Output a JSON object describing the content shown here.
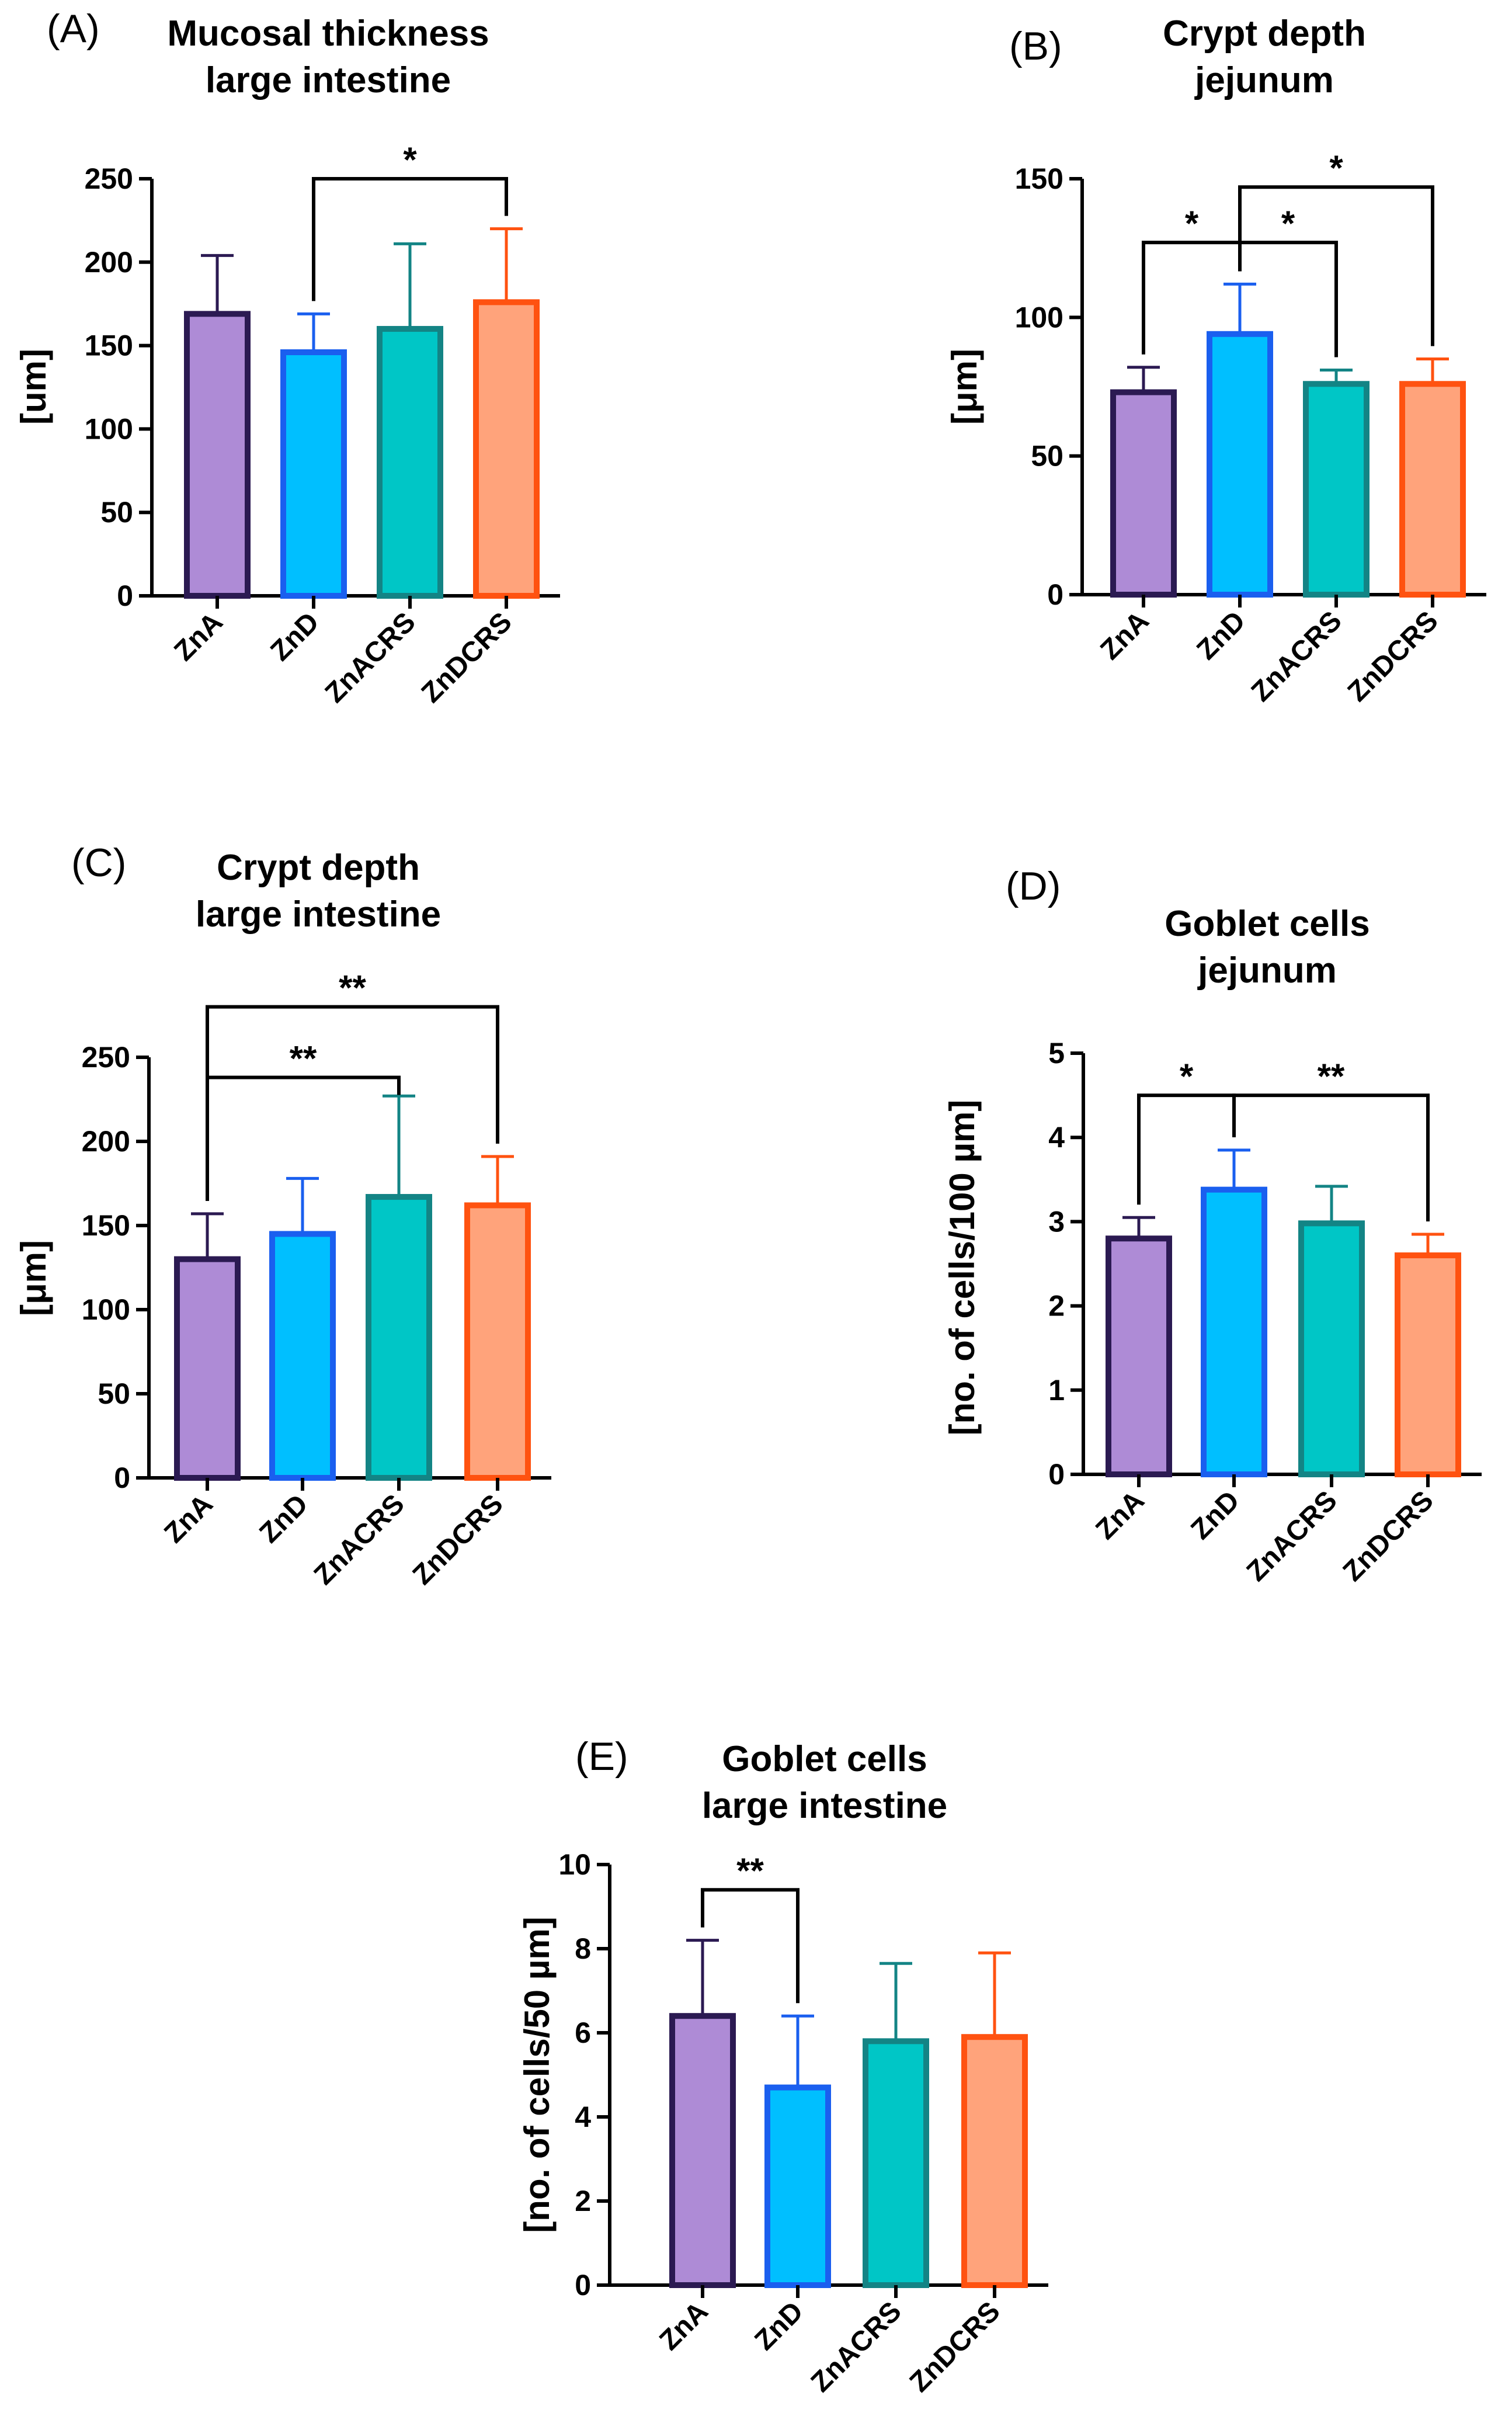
{
  "chart_data": [
    {
      "id": "A",
      "type": "bar",
      "panel_label": "(A)",
      "title": [
        "Mucosal thickness",
        "large intestine"
      ],
      "ylabel": "[um]",
      "categories": [
        "ZnA",
        "ZnD",
        "ZnACRS",
        "ZnDCRS"
      ],
      "values": [
        169,
        146,
        160,
        176
      ],
      "errors": [
        35,
        23,
        51,
        44
      ],
      "ylim": [
        0,
        250
      ],
      "yticks": [
        0,
        50,
        100,
        150,
        200,
        250
      ],
      "ytick_labels": [
        "0",
        "50",
        "100",
        "150",
        "200",
        "250"
      ],
      "significance": [
        {
          "from": 1,
          "to": 3,
          "label": "*",
          "level": 250
        }
      ]
    },
    {
      "id": "B",
      "type": "bar",
      "panel_label": "(B)",
      "title": [
        "Crypt depth",
        "jejunum"
      ],
      "ylabel": "[μm]",
      "categories": [
        "ZnA",
        "ZnD",
        "ZnACRS",
        "ZnDCRS"
      ],
      "values": [
        73,
        94,
        76,
        76
      ],
      "errors": [
        9,
        18,
        5,
        9
      ],
      "ylim": [
        0,
        150
      ],
      "yticks": [
        0,
        50,
        100,
        150
      ],
      "ytick_labels": [
        "0",
        "50",
        "100",
        "150"
      ],
      "significance": [
        {
          "from": 0,
          "to": 1,
          "label": "*",
          "level": 127
        },
        {
          "from": 1,
          "to": 2,
          "label": "*",
          "level": 127
        },
        {
          "from": 1,
          "to": 3,
          "label": "*",
          "level": 147
        }
      ]
    },
    {
      "id": "C",
      "type": "bar",
      "panel_label": "(C)",
      "title": [
        "Crypt depth",
        "large intestine"
      ],
      "ylabel": "[μm]",
      "categories": [
        "ZnA",
        "ZnD",
        "ZnACRS",
        "ZnDCRS"
      ],
      "values": [
        130,
        145,
        167,
        162
      ],
      "errors": [
        27,
        33,
        60,
        29
      ],
      "ylim": [
        0,
        250
      ],
      "yticks": [
        0,
        50,
        100,
        150,
        200,
        250
      ],
      "ytick_labels": [
        "0",
        "50",
        "100",
        "150",
        "200",
        "250"
      ],
      "significance": [
        {
          "from": 0,
          "to": 2,
          "label": "**",
          "level": 238
        },
        {
          "from": 0,
          "to": 3,
          "label": "**",
          "level": 280
        }
      ]
    },
    {
      "id": "D",
      "type": "bar",
      "panel_label": "(D)",
      "title": [
        "Goblet cells",
        "jejunum"
      ],
      "ylabel": "[no. of cells/100 µm]",
      "categories": [
        "ZnA",
        "ZnD",
        "ZnACRS",
        "ZnDCRS"
      ],
      "values": [
        2.8,
        3.38,
        2.98,
        2.6
      ],
      "errors": [
        0.25,
        0.47,
        0.44,
        0.25
      ],
      "ylim": [
        0,
        5
      ],
      "yticks": [
        0,
        1,
        2,
        3,
        4,
        5
      ],
      "ytick_labels": [
        "0",
        "1",
        "2",
        "3",
        "4",
        "5"
      ],
      "significance": [
        {
          "from": 0,
          "to": 1,
          "label": "*",
          "level": 4.5
        },
        {
          "from": 1,
          "to": 3,
          "label": "**",
          "level": 4.5
        }
      ]
    },
    {
      "id": "E",
      "type": "bar",
      "panel_label": "(E)",
      "title": [
        "Goblet cells",
        "large intestine"
      ],
      "ylabel": "[no. of cells/50 µm]",
      "categories": [
        "ZnA",
        "ZnD",
        "ZnACRS",
        "ZnDCRS"
      ],
      "values": [
        6.4,
        4.7,
        5.8,
        5.9
      ],
      "errors": [
        1.8,
        1.7,
        1.85,
        2.0
      ],
      "ylim": [
        0,
        10
      ],
      "yticks": [
        0,
        2,
        4,
        6,
        8,
        10
      ],
      "ytick_labels": [
        "0",
        "2",
        "4",
        "6",
        "8",
        "10"
      ],
      "significance": [
        {
          "from": 0,
          "to": 1,
          "label": "**",
          "level": 9.4
        }
      ]
    }
  ],
  "colors": {
    "fills": [
      "#ae8bd6",
      "#00bfff",
      "#00c6c6",
      "#ffa37b"
    ],
    "edges": [
      "#2b1a52",
      "#1a5fef",
      "#138485",
      "#ff5210"
    ],
    "axis": "#000000"
  }
}
